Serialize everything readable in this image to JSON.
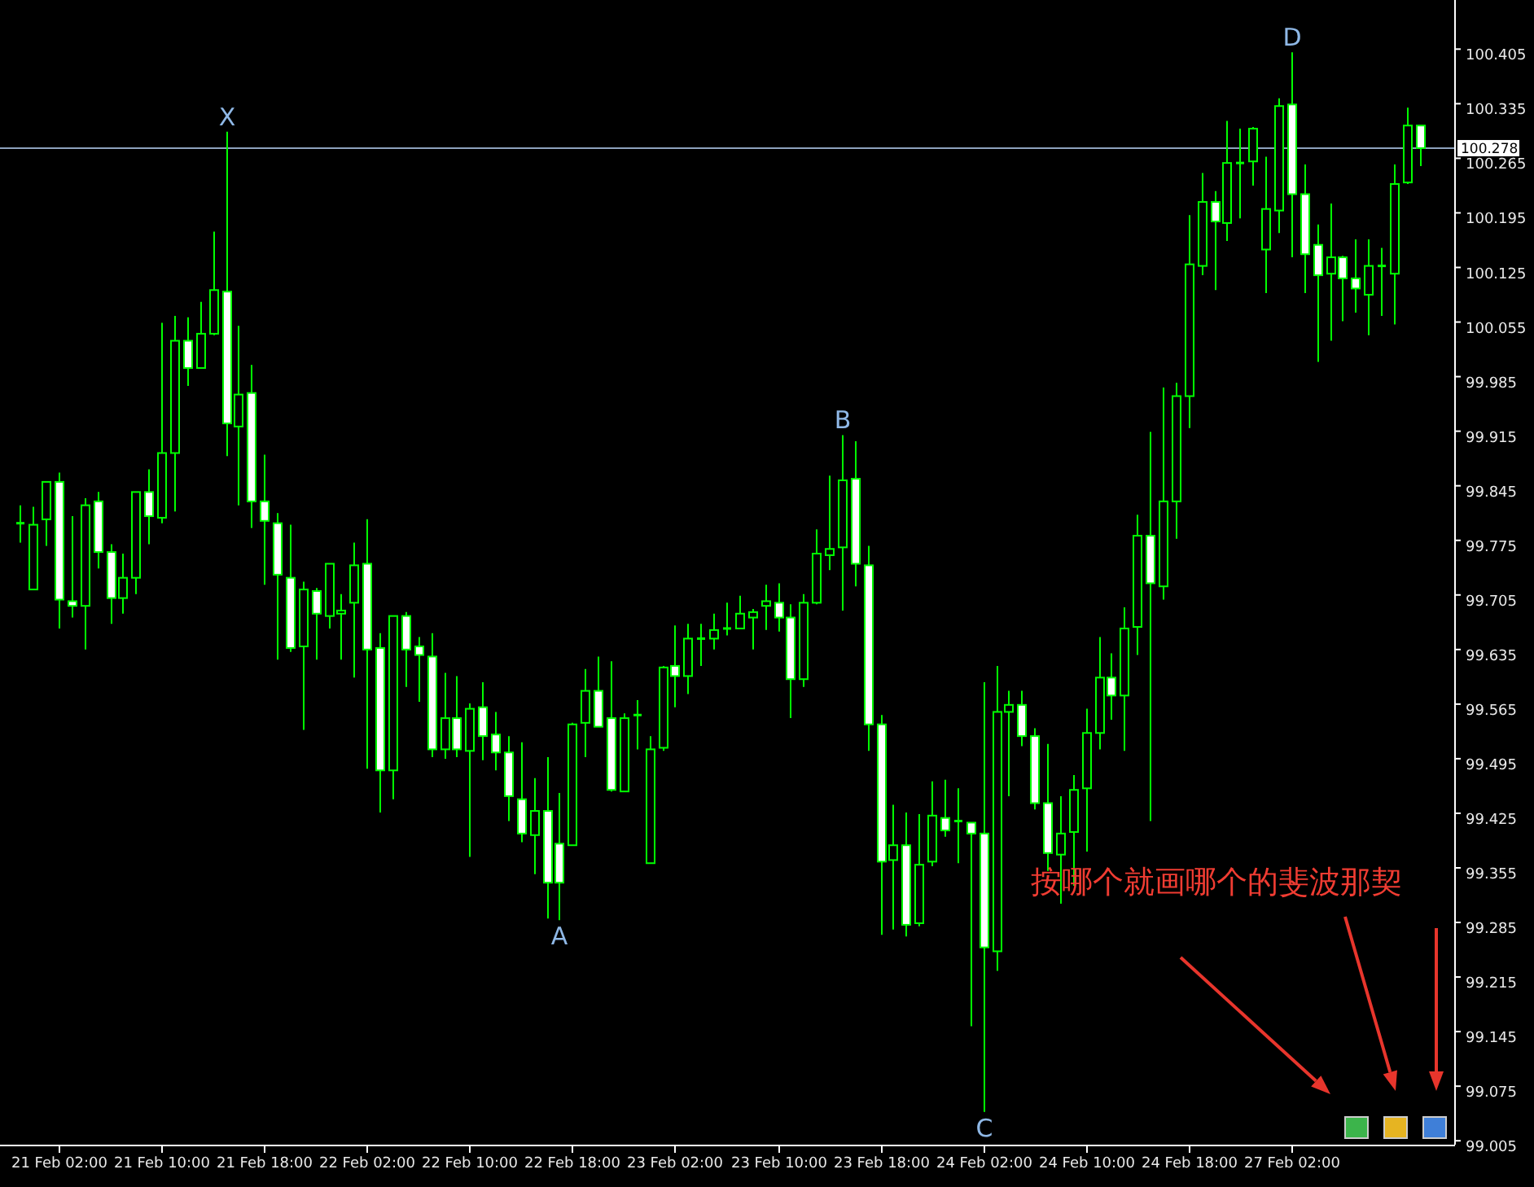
{
  "chart_data": {
    "type": "candlestick",
    "categories": [
      null,
      null,
      null,
      "21 Feb 02:00",
      null,
      null,
      null,
      null,
      null,
      null,
      null,
      "21 Feb 10:00",
      null,
      null,
      null,
      null,
      null,
      null,
      null,
      "21 Feb 18:00",
      null,
      null,
      null,
      null,
      null,
      null,
      null,
      "22 Feb 02:00",
      null,
      null,
      null,
      null,
      null,
      null,
      null,
      "22 Feb 10:00",
      null,
      null,
      null,
      null,
      null,
      null,
      null,
      "22 Feb 18:00",
      null,
      null,
      null,
      null,
      null,
      null,
      null,
      "23 Feb 02:00",
      null,
      null,
      null,
      null,
      null,
      null,
      null,
      "23 Feb 10:00",
      null,
      null,
      null,
      null,
      null,
      null,
      null,
      "23 Feb 18:00",
      null,
      null,
      null,
      null,
      null,
      null,
      null,
      "24 Feb 02:00",
      null,
      null,
      null,
      null,
      null,
      null,
      null,
      "24 Feb 10:00",
      null,
      null,
      null,
      null,
      null,
      null,
      null,
      "24 Feb 18:00",
      null,
      null,
      null,
      null,
      null,
      null,
      null,
      "27 Feb 02:00",
      null,
      null,
      null,
      null,
      null,
      null,
      null,
      null,
      null,
      null
    ],
    "ohlc": [
      [
        99.795,
        99.82,
        99.772,
        99.797
      ],
      [
        99.712,
        99.818,
        99.712,
        99.795
      ],
      [
        99.802,
        99.85,
        99.768,
        99.85
      ],
      [
        99.85,
        99.862,
        99.662,
        99.699
      ],
      [
        99.697,
        99.806,
        99.676,
        99.691
      ],
      [
        99.691,
        99.829,
        99.635,
        99.82
      ],
      [
        99.825,
        99.837,
        99.739,
        99.76
      ],
      [
        99.76,
        99.77,
        99.668,
        99.701
      ],
      [
        99.701,
        99.758,
        99.681,
        99.727
      ],
      [
        99.727,
        99.837,
        99.706,
        99.837
      ],
      [
        99.837,
        99.866,
        99.77,
        99.806
      ],
      [
        99.804,
        100.054,
        99.797,
        99.887
      ],
      [
        99.887,
        100.063,
        99.812,
        100.031
      ],
      [
        100.031,
        100.061,
        99.973,
        99.996
      ],
      [
        99.996,
        100.081,
        99.996,
        100.04
      ],
      [
        100.04,
        100.171,
        100.038,
        100.096
      ],
      [
        100.094,
        100.299,
        99.883,
        99.925
      ],
      [
        99.921,
        100.05,
        99.82,
        99.962
      ],
      [
        99.964,
        100.0,
        99.791,
        99.825
      ],
      [
        99.825,
        99.885,
        99.718,
        99.8
      ],
      [
        99.797,
        99.81,
        99.622,
        99.731
      ],
      [
        99.727,
        99.795,
        99.632,
        99.637
      ],
      [
        99.639,
        99.722,
        99.532,
        99.712
      ],
      [
        99.71,
        99.714,
        99.622,
        99.681
      ],
      [
        99.678,
        99.745,
        99.662,
        99.745
      ],
      [
        99.681,
        99.706,
        99.622,
        99.685
      ],
      [
        99.695,
        99.772,
        99.599,
        99.743
      ],
      [
        99.745,
        99.802,
        99.482,
        99.635
      ],
      [
        99.637,
        99.656,
        99.426,
        99.48
      ],
      [
        99.48,
        99.678,
        99.443,
        99.678
      ],
      [
        99.678,
        99.683,
        99.587,
        99.635
      ],
      [
        99.639,
        99.651,
        99.568,
        99.628
      ],
      [
        99.626,
        99.656,
        99.497,
        99.507
      ],
      [
        99.507,
        99.605,
        99.495,
        99.547
      ],
      [
        99.547,
        99.601,
        99.497,
        99.507
      ],
      [
        99.505,
        99.566,
        99.369,
        99.559
      ],
      [
        99.561,
        99.593,
        99.493,
        99.524
      ],
      [
        99.526,
        99.555,
        99.48,
        99.503
      ],
      [
        99.503,
        99.524,
        99.415,
        99.447
      ],
      [
        99.443,
        99.516,
        99.388,
        99.399
      ],
      [
        99.397,
        99.47,
        99.347,
        99.428
      ],
      [
        99.428,
        99.497,
        99.29,
        99.336
      ],
      [
        99.386,
        99.451,
        99.288,
        99.336
      ],
      [
        99.384,
        99.541,
        99.384,
        99.539
      ],
      [
        99.541,
        99.61,
        99.497,
        99.582
      ],
      [
        99.582,
        99.626,
        99.536,
        99.536
      ],
      [
        99.547,
        99.62,
        99.453,
        99.455
      ],
      [
        99.453,
        99.553,
        99.453,
        99.547
      ],
      [
        99.551,
        99.57,
        99.507,
        99.551
      ],
      [
        99.361,
        99.524,
        99.361,
        99.507
      ],
      [
        99.509,
        99.614,
        99.505,
        99.612
      ],
      [
        99.614,
        99.666,
        99.561,
        99.601
      ],
      [
        99.601,
        99.668,
        99.578,
        99.649
      ],
      [
        99.649,
        99.668,
        99.614,
        99.649
      ],
      [
        99.649,
        99.681,
        99.635,
        99.66
      ],
      [
        99.662,
        99.695,
        99.653,
        99.662
      ],
      [
        99.662,
        99.704,
        99.662,
        99.681
      ],
      [
        99.676,
        99.687,
        99.635,
        99.683
      ],
      [
        99.691,
        99.718,
        99.66,
        99.697
      ],
      [
        99.695,
        99.72,
        99.658,
        99.676
      ],
      [
        99.676,
        99.693,
        99.547,
        99.597
      ],
      [
        99.597,
        99.706,
        99.587,
        99.695
      ],
      [
        99.695,
        99.789,
        99.693,
        99.758
      ],
      [
        99.756,
        99.858,
        99.737,
        99.764
      ],
      [
        99.766,
        99.91,
        99.685,
        99.852
      ],
      [
        99.854,
        99.902,
        99.716,
        99.745
      ],
      [
        99.743,
        99.768,
        99.505,
        99.539
      ],
      [
        99.539,
        99.551,
        99.269,
        99.363
      ],
      [
        99.365,
        99.436,
        99.276,
        99.384
      ],
      [
        99.384,
        99.426,
        99.267,
        99.282
      ],
      [
        99.284,
        99.424,
        99.28,
        99.359
      ],
      [
        99.363,
        99.466,
        99.357,
        99.422
      ],
      [
        99.419,
        99.468,
        99.395,
        99.403
      ],
      [
        99.415,
        99.457,
        99.361,
        99.415
      ],
      [
        99.413,
        99.413,
        99.152,
        99.399
      ],
      [
        99.399,
        99.593,
        99.042,
        99.253
      ],
      [
        99.248,
        99.614,
        99.223,
        99.555
      ],
      [
        99.555,
        99.582,
        99.447,
        99.564
      ],
      [
        99.564,
        99.582,
        99.511,
        99.524
      ],
      [
        99.524,
        99.534,
        99.43,
        99.438
      ],
      [
        99.438,
        99.514,
        99.351,
        99.374
      ],
      [
        99.372,
        99.447,
        99.309,
        99.399
      ],
      [
        99.401,
        99.474,
        99.332,
        99.455
      ],
      [
        99.457,
        99.559,
        99.376,
        99.528
      ],
      [
        99.528,
        99.651,
        99.507,
        99.599
      ],
      [
        99.599,
        99.63,
        99.545,
        99.576
      ],
      [
        99.576,
        99.689,
        99.505,
        99.662
      ],
      [
        99.664,
        99.808,
        99.628,
        99.781
      ],
      [
        99.781,
        99.914,
        99.415,
        99.72
      ],
      [
        99.716,
        99.971,
        99.699,
        99.825
      ],
      [
        99.825,
        99.977,
        99.777,
        99.96
      ],
      [
        99.96,
        100.192,
        99.919,
        100.129
      ],
      [
        100.127,
        100.246,
        100.115,
        100.209
      ],
      [
        100.209,
        100.223,
        100.096,
        100.184
      ],
      [
        100.182,
        100.313,
        100.159,
        100.259
      ],
      [
        100.259,
        100.303,
        100.188,
        100.259
      ],
      [
        100.261,
        100.305,
        100.23,
        100.303
      ],
      [
        100.148,
        100.267,
        100.092,
        100.2
      ],
      [
        100.198,
        100.342,
        100.169,
        100.332
      ],
      [
        100.334,
        100.401,
        100.138,
        100.219
      ],
      [
        100.219,
        100.257,
        100.092,
        100.142
      ],
      [
        100.154,
        100.18,
        100.004,
        100.115
      ],
      [
        100.117,
        100.207,
        100.031,
        100.138
      ],
      [
        100.138,
        100.14,
        100.056,
        100.111
      ],
      [
        100.111,
        100.161,
        100.067,
        100.098
      ],
      [
        100.09,
        100.161,
        100.038,
        100.127
      ],
      [
        100.127,
        100.15,
        100.063,
        100.125
      ],
      [
        100.117,
        100.257,
        100.052,
        100.232
      ],
      [
        100.234,
        100.33,
        100.232,
        100.307
      ],
      [
        100.307,
        100.307,
        100.255,
        100.278
      ]
    ],
    "color": "#00ff00",
    "ylim": [
      99.0,
      100.468
    ],
    "yticks": [
      100.405,
      100.335,
      100.265,
      100.195,
      100.125,
      100.055,
      99.985,
      99.915,
      99.845,
      99.775,
      99.705,
      99.635,
      99.565,
      99.495,
      99.425,
      99.355,
      99.285,
      99.215,
      99.145,
      99.075,
      99.005
    ],
    "ref_lines": [
      {
        "axis": "y",
        "value": 100.278,
        "label": "100.278",
        "color": "#8ea2bd"
      }
    ],
    "annotations": [
      {
        "text": "X",
        "y": 100.299
      },
      {
        "text": "A",
        "y": 99.288
      },
      {
        "text": "B",
        "y": 99.91
      },
      {
        "text": "C",
        "y": 99.042
      },
      {
        "text": "D",
        "y": 100.401
      },
      "按哪个就画哪个的斐波那契"
    ]
  }
}
